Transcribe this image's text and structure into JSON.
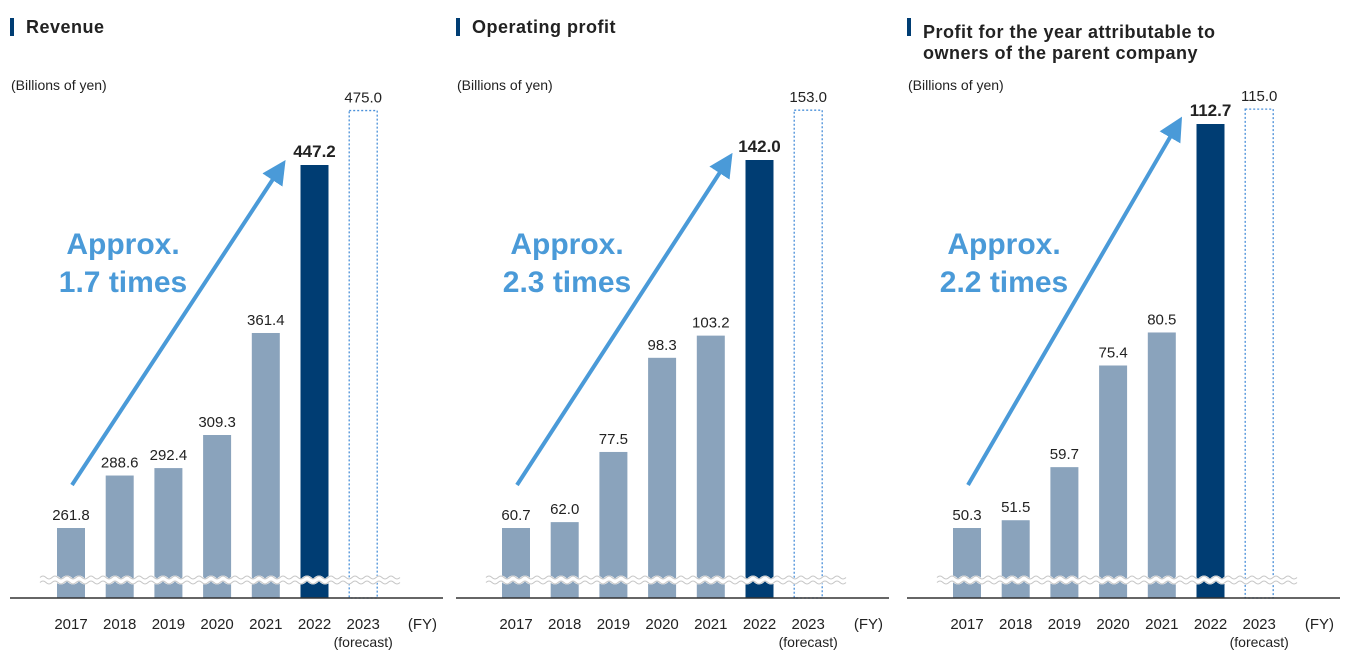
{
  "colors": {
    "bar": "#8aa3bc",
    "highlight": "#003d73",
    "forecast_border": "#4a90d9",
    "arrow": "#4a9ad8",
    "title_marker": "#003d73",
    "axis": "#333333",
    "text": "#222222"
  },
  "chart_data": [
    {
      "type": "bar",
      "title": "Revenue",
      "unit_label": "(Billions of yen)",
      "categories": [
        "2017",
        "2018",
        "2019",
        "2020",
        "2021",
        "2022",
        "2023"
      ],
      "category_notes": [
        "",
        "",
        "",
        "",
        "",
        "",
        "(forecast)"
      ],
      "x_unit": "(FY)",
      "values": [
        261.8,
        288.6,
        292.4,
        309.3,
        361.4,
        447.2,
        475.0
      ],
      "value_labels": [
        "261.8",
        "288.6",
        "292.4",
        "309.3",
        "361.4",
        "447.2",
        "475.0"
      ],
      "highlight_index": 5,
      "forecast_index": 6,
      "annotation": [
        "Approx.",
        "1.7 times"
      ],
      "axis_break": true
    },
    {
      "type": "bar",
      "title": "Operating profit",
      "unit_label": "(Billions of yen)",
      "categories": [
        "2017",
        "2018",
        "2019",
        "2020",
        "2021",
        "2022",
        "2023"
      ],
      "category_notes": [
        "",
        "",
        "",
        "",
        "",
        "",
        "(forecast)"
      ],
      "x_unit": "(FY)",
      "values": [
        60.7,
        62.0,
        77.5,
        98.3,
        103.2,
        142.0,
        153.0
      ],
      "value_labels": [
        "60.7",
        "62.0",
        "77.5",
        "98.3",
        "103.2",
        "142.0",
        "153.0"
      ],
      "highlight_index": 5,
      "forecast_index": 6,
      "annotation": [
        "Approx.",
        "2.3 times"
      ],
      "axis_break": true
    },
    {
      "type": "bar",
      "title": [
        "Profit for the year attributable to",
        "owners of the parent company"
      ],
      "unit_label": "(Billions of yen)",
      "categories": [
        "2017",
        "2018",
        "2019",
        "2020",
        "2021",
        "2022",
        "2023"
      ],
      "category_notes": [
        "",
        "",
        "",
        "",
        "",
        "",
        "(forecast)"
      ],
      "x_unit": "(FY)",
      "values": [
        50.3,
        51.5,
        59.7,
        75.4,
        80.5,
        112.7,
        115.0
      ],
      "value_labels": [
        "50.3",
        "51.5",
        "59.7",
        "75.4",
        "80.5",
        "112.7",
        "115.0"
      ],
      "highlight_index": 5,
      "forecast_index": 6,
      "annotation": [
        "Approx.",
        "2.2 times"
      ],
      "axis_break": true
    }
  ]
}
